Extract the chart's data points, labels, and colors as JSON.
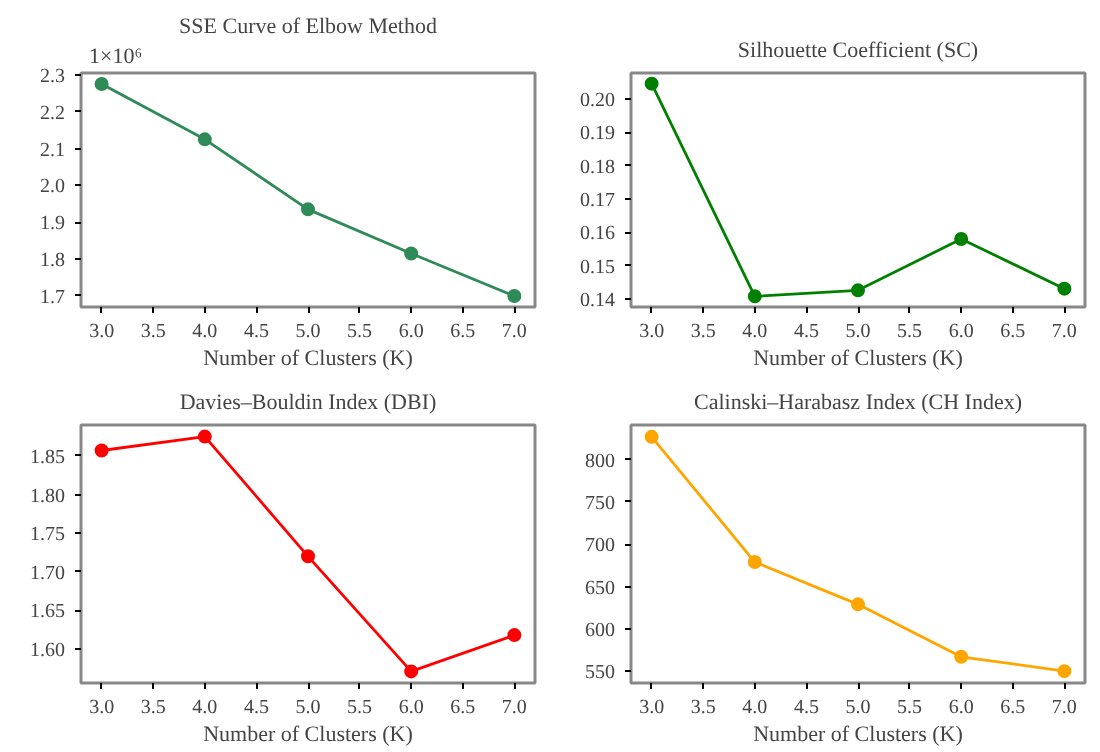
{
  "chart_data": [
    {
      "type": "line",
      "title": "SSE Curve of Elbow Method",
      "xlabel": "Number of Clusters (K)",
      "annotations": [
        "1×10⁶"
      ],
      "x": [
        3,
        4,
        5,
        6,
        7
      ],
      "series": [
        {
          "color": "#2e8b57",
          "values": [
            2.275,
            2.125,
            1.935,
            1.815,
            1.7
          ]
        }
      ],
      "xlim": [
        2.8,
        7.2
      ],
      "xticks": [
        {
          "value": 3,
          "label": "3.0"
        },
        3.5,
        {
          "value": 4,
          "label": "4.0"
        },
        4.5,
        {
          "value": 5,
          "label": "5.0"
        },
        5.5,
        {
          "value": 6,
          "label": "6.0"
        },
        6.5,
        {
          "value": 7,
          "label": "7.0"
        }
      ],
      "ylim": [
        1.67,
        2.305
      ],
      "yticks": [
        1.7,
        1.8,
        1.9,
        {
          "value": 2,
          "label": "2.0"
        },
        2.1,
        2.2,
        2.3
      ],
      "marker": "circle",
      "line_style": "solid"
    },
    {
      "type": "line",
      "title": "Silhouette Coefficient (SC)",
      "xlabel": "Number of Clusters (K)",
      "x": [
        3,
        4,
        5,
        6,
        7
      ],
      "series": [
        {
          "color": "#008000",
          "values": [
            0.2046,
            0.1408,
            0.1426,
            0.158,
            0.1431
          ]
        }
      ],
      "xlim": [
        2.8,
        7.2
      ],
      "xticks": [
        {
          "value": 3,
          "label": "3.0"
        },
        3.5,
        {
          "value": 4,
          "label": "4.0"
        },
        4.5,
        {
          "value": 5,
          "label": "5.0"
        },
        5.5,
        {
          "value": 6,
          "label": "6.0"
        },
        6.5,
        {
          "value": 7,
          "label": "7.0"
        }
      ],
      "ylim": [
        0.1376,
        0.2078
      ],
      "yticks": [
        0.14,
        0.15,
        0.16,
        0.17,
        0.18,
        0.19,
        {
          "value": 0.2,
          "label": "0.20"
        }
      ],
      "marker": "circle",
      "line_style": "solid"
    },
    {
      "type": "line",
      "title": "Davies–Bouldin Index (DBI)",
      "xlabel": "Number of Clusters (K)",
      "x": [
        3,
        4,
        5,
        6,
        7
      ],
      "series": [
        {
          "color": "#ff0000",
          "values": [
            1.857,
            1.875,
            1.72,
            1.571,
            1.618
          ]
        }
      ],
      "xlim": [
        2.8,
        7.2
      ],
      "xticks": [
        {
          "value": 3,
          "label": "3.0"
        },
        3.5,
        {
          "value": 4,
          "label": "4.0"
        },
        4.5,
        {
          "value": 5,
          "label": "5.0"
        },
        5.5,
        {
          "value": 6,
          "label": "6.0"
        },
        6.5,
        {
          "value": 7,
          "label": "7.0"
        }
      ],
      "ylim": [
        1.556,
        1.89
      ],
      "yticks": [
        {
          "value": 1.6,
          "label": "1.60"
        },
        1.65,
        {
          "value": 1.7,
          "label": "1.70"
        },
        1.75,
        {
          "value": 1.8,
          "label": "1.80"
        },
        1.85
      ],
      "marker": "circle",
      "line_style": "solid"
    },
    {
      "type": "line",
      "title": "Calinski–Harabasz Index (CH Index)",
      "xlabel": "Number of Clusters (K)",
      "x": [
        3,
        4,
        5,
        6,
        7
      ],
      "series": [
        {
          "color": "#ffa500",
          "values": [
            827,
            679,
            629,
            567,
            550
          ]
        }
      ],
      "xlim": [
        2.8,
        7.2
      ],
      "xticks": [
        {
          "value": 3,
          "label": "3.0"
        },
        3.5,
        {
          "value": 4,
          "label": "4.0"
        },
        4.5,
        {
          "value": 5,
          "label": "5.0"
        },
        5.5,
        {
          "value": 6,
          "label": "6.0"
        },
        6.5,
        {
          "value": 7,
          "label": "7.0"
        }
      ],
      "ylim": [
        536,
        841
      ],
      "yticks": [
        550,
        600,
        650,
        700,
        750,
        800
      ],
      "marker": "circle",
      "line_style": "solid"
    }
  ]
}
